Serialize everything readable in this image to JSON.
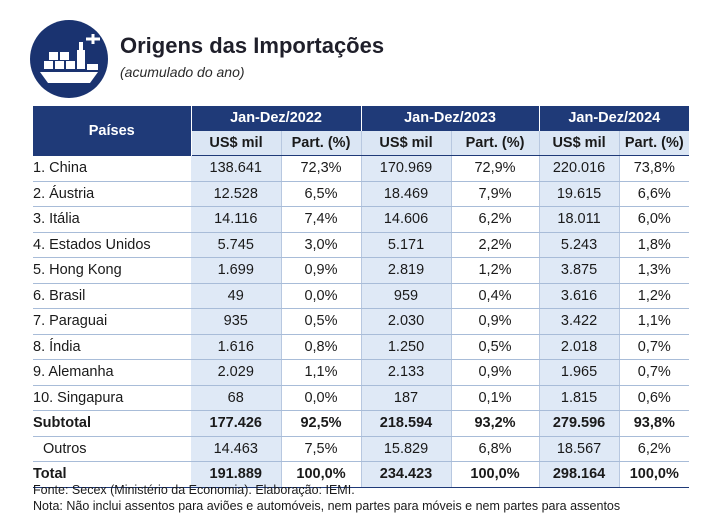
{
  "header": {
    "title": "Origens das Importações",
    "subtitle": "(acumulado do ano)",
    "icon": "ship-icon"
  },
  "table": {
    "country_header": "Países",
    "periods": [
      "Jan-Dez/2022",
      "Jan-Dez/2023",
      "Jan-Dez/2024"
    ],
    "col_usd": "US$ mil",
    "col_part": "Part. (%)",
    "rows": [
      {
        "name": "1. China",
        "v": [
          "138.641",
          "72,3%",
          "170.969",
          "72,9%",
          "220.016",
          "73,8%"
        ]
      },
      {
        "name": "2. Áustria",
        "v": [
          "12.528",
          "6,5%",
          "18.469",
          "7,9%",
          "19.615",
          "6,6%"
        ]
      },
      {
        "name": "3. Itália",
        "v": [
          "14.116",
          "7,4%",
          "14.606",
          "6,2%",
          "18.011",
          "6,0%"
        ]
      },
      {
        "name": "4. Estados Unidos",
        "v": [
          "5.745",
          "3,0%",
          "5.171",
          "2,2%",
          "5.243",
          "1,8%"
        ]
      },
      {
        "name": "5. Hong Kong",
        "v": [
          "1.699",
          "0,9%",
          "2.819",
          "1,2%",
          "3.875",
          "1,3%"
        ]
      },
      {
        "name": "6. Brasil",
        "v": [
          "49",
          "0,0%",
          "959",
          "0,4%",
          "3.616",
          "1,2%"
        ]
      },
      {
        "name": "7. Paraguai",
        "v": [
          "935",
          "0,5%",
          "2.030",
          "0,9%",
          "3.422",
          "1,1%"
        ]
      },
      {
        "name": "8. Índia",
        "v": [
          "1.616",
          "0,8%",
          "1.250",
          "0,5%",
          "2.018",
          "0,7%"
        ]
      },
      {
        "name": "9. Alemanha",
        "v": [
          "2.029",
          "1,1%",
          "2.133",
          "0,9%",
          "1.965",
          "0,7%"
        ]
      },
      {
        "name": "10. Singapura",
        "v": [
          "68",
          "0,0%",
          "187",
          "0,1%",
          "1.815",
          "0,6%"
        ]
      }
    ],
    "subtotal": {
      "name": "Subtotal",
      "v": [
        "177.426",
        "92,5%",
        "218.594",
        "93,2%",
        "279.596",
        "93,8%"
      ]
    },
    "outros": {
      "name": "Outros",
      "v": [
        "14.463",
        "7,5%",
        "15.829",
        "6,8%",
        "18.567",
        "6,2%"
      ]
    },
    "total": {
      "name": "Total",
      "v": [
        "191.889",
        "100,0%",
        "234.423",
        "100,0%",
        "298.164",
        "100,0%"
      ]
    }
  },
  "footer": {
    "source": "Fonte: Secex (Ministério da Economia). Elaboração: IEMI.",
    "note": "Nota: Não inclui assentos para aviões e automóveis, nem partes para móveis e nem partes para assentos"
  },
  "colors": {
    "navy": "#1f3a78",
    "light_blue": "#dfe9f6",
    "icon_bg": "#1a3370"
  }
}
